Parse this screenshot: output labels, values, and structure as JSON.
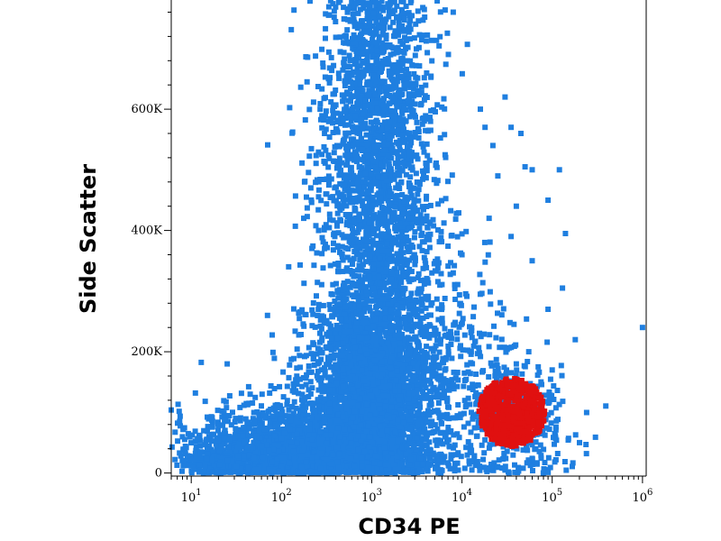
{
  "chart_data": {
    "type": "scatter",
    "title": "",
    "xlabel": "CD34 PE",
    "ylabel": "Side Scatter",
    "x_scale": "log",
    "xlim": [
      6,
      1100000
    ],
    "ylim": [
      -5000,
      780000
    ],
    "grid": false,
    "legend": "none",
    "x_ticks": [
      {
        "base": "10",
        "exp": "1",
        "value": 10
      },
      {
        "base": "10",
        "exp": "2",
        "value": 100
      },
      {
        "base": "10",
        "exp": "3",
        "value": 1000
      },
      {
        "base": "10",
        "exp": "4",
        "value": 10000
      },
      {
        "base": "10",
        "exp": "5",
        "value": 100000
      },
      {
        "base": "10",
        "exp": "6",
        "value": 1000000
      }
    ],
    "y_ticks": [
      {
        "label": "0",
        "value": 0
      },
      {
        "label": "200K",
        "value": 200000
      },
      {
        "label": "400K",
        "value": 400000
      },
      {
        "label": "600K",
        "value": 600000
      }
    ],
    "series": [
      {
        "color": "#1f7fe0",
        "clusters": [
          {
            "type": "gaussian",
            "cx_log": 3.05,
            "sx_log": 0.32,
            "cy": 500000,
            "sy": 260000,
            "n": 3200
          },
          {
            "type": "gaussian",
            "cx_log": 3.05,
            "sx_log": 0.38,
            "cy": 120000,
            "sy": 90000,
            "n": 2600
          },
          {
            "type": "gaussian",
            "cx_log": 2.2,
            "sx_log": 0.55,
            "cy": 40000,
            "sy": 40000,
            "n": 1600
          },
          {
            "type": "gaussian",
            "cx_log": 1.5,
            "sx_log": 0.3,
            "cy": 25000,
            "sy": 25000,
            "n": 400
          },
          {
            "type": "gaussian",
            "cx_log": 4.1,
            "sx_log": 0.25,
            "cy": 150000,
            "sy": 120000,
            "n": 220
          },
          {
            "type": "gaussian",
            "cx_log": 4.7,
            "sx_log": 0.3,
            "cy": 80000,
            "sy": 50000,
            "n": 260
          }
        ],
        "points": [
          [
            300,
            560000
          ],
          [
            180,
            480000
          ],
          [
            120,
            340000
          ],
          [
            70,
            260000
          ],
          [
            25,
            180000
          ],
          [
            45,
            130000
          ],
          [
            8000,
            760000
          ],
          [
            16000,
            600000
          ],
          [
            18000,
            570000
          ],
          [
            22000,
            540000
          ],
          [
            35000,
            570000
          ],
          [
            40000,
            440000
          ],
          [
            50000,
            505000
          ],
          [
            60000,
            500000
          ],
          [
            120000,
            500000
          ],
          [
            90000,
            450000
          ],
          [
            35000,
            390000
          ],
          [
            60000,
            350000
          ],
          [
            140000,
            395000
          ],
          [
            130000,
            305000
          ],
          [
            90000,
            270000
          ],
          [
            25000,
            490000
          ],
          [
            45000,
            560000
          ],
          [
            20000,
            420000
          ],
          [
            180000,
            220000
          ],
          [
            1000000,
            240000
          ],
          [
            10000,
            360000
          ],
          [
            8000,
            330000
          ],
          [
            30000,
            620000
          ],
          [
            40000,
            180000
          ],
          [
            70000,
            175000
          ],
          [
            55000,
            200000
          ],
          [
            30000,
            5000
          ],
          [
            12000,
            20000
          ],
          [
            100000,
            170000
          ]
        ]
      },
      {
        "color": "#e01010",
        "clusters": [
          {
            "type": "ellipse",
            "cx_log": 4.55,
            "rx_log": 0.37,
            "cy": 100000,
            "ry": 56000,
            "n": 600
          }
        ],
        "points": []
      }
    ]
  }
}
